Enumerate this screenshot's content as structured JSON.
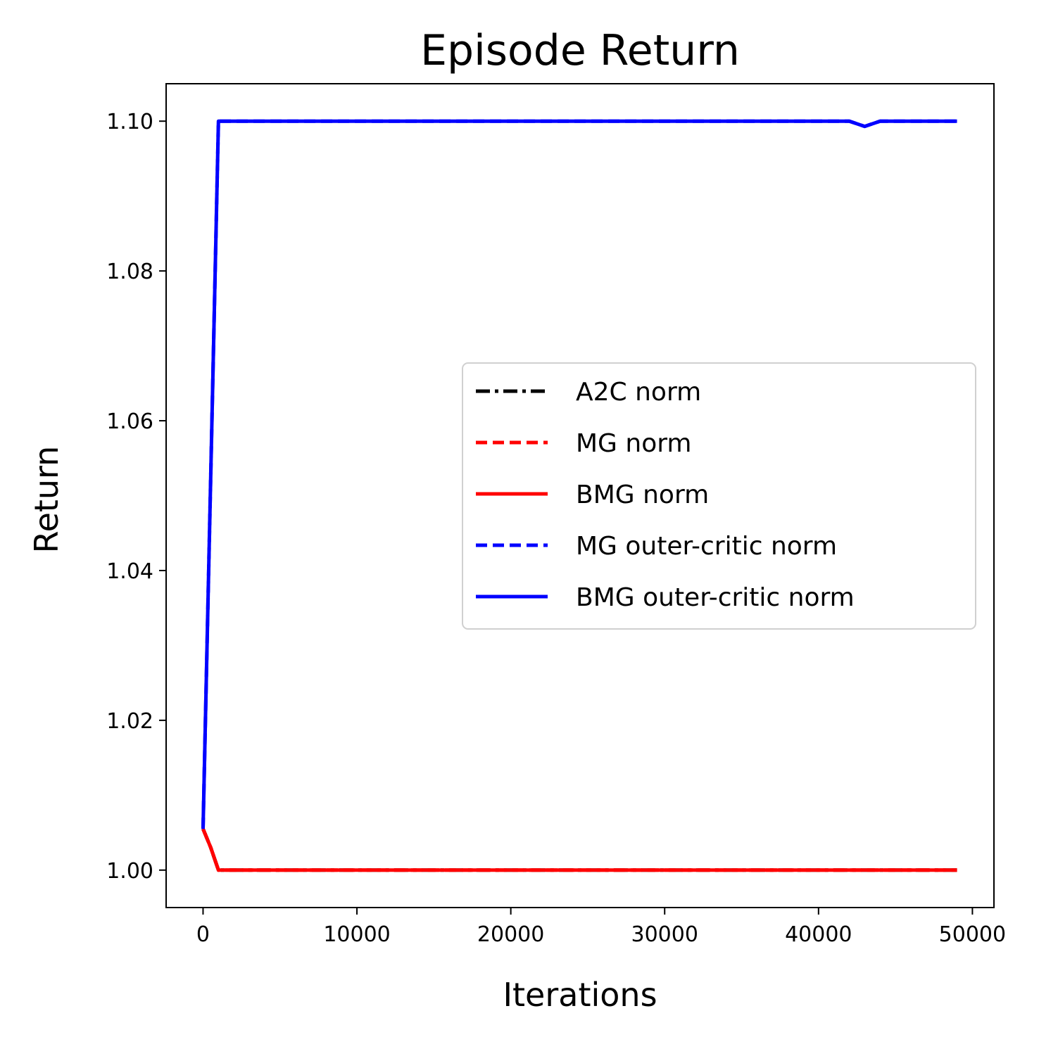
{
  "chart_data": {
    "type": "line",
    "title": "Episode Return",
    "xlabel": "Iterations",
    "ylabel": "Return",
    "xlim": [
      -2400,
      51400
    ],
    "ylim": [
      0.995,
      1.105
    ],
    "xticks": [
      0,
      10000,
      20000,
      30000,
      40000,
      50000
    ],
    "xtick_labels": [
      "0",
      "10000",
      "20000",
      "30000",
      "40000",
      "50000"
    ],
    "yticks": [
      1.0,
      1.02,
      1.04,
      1.06,
      1.08,
      1.1
    ],
    "ytick_labels": [
      "1.00",
      "1.02",
      "1.04",
      "1.06",
      "1.08",
      "1.10"
    ],
    "grid": false,
    "legend_position": "center-right",
    "series": [
      {
        "name": "A2C norm",
        "color": "#000000",
        "style": "dashdot",
        "x": [
          0,
          500,
          1000,
          49000
        ],
        "y": [
          1.0055,
          1.003,
          1.0,
          1.0
        ]
      },
      {
        "name": "MG norm",
        "color": "#ff0000",
        "style": "dashed",
        "x": [
          0,
          500,
          1000,
          49000
        ],
        "y": [
          1.0055,
          1.003,
          1.0,
          1.0
        ]
      },
      {
        "name": "BMG norm",
        "color": "#ff0000",
        "style": "solid",
        "x": [
          0,
          500,
          1000,
          49000
        ],
        "y": [
          1.0055,
          1.003,
          1.0,
          1.0
        ]
      },
      {
        "name": "MG outer-critic norm",
        "color": "#0000ff",
        "style": "dashed",
        "x": [
          0,
          1000,
          42000,
          43000,
          44000,
          49000
        ],
        "y": [
          1.0055,
          1.1,
          1.1,
          1.0993,
          1.1,
          1.1
        ]
      },
      {
        "name": "BMG outer-critic norm",
        "color": "#0000ff",
        "style": "solid",
        "x": [
          0,
          1000,
          42000,
          43000,
          44000,
          49000
        ],
        "y": [
          1.0055,
          1.1,
          1.1,
          1.0993,
          1.1,
          1.1
        ]
      }
    ]
  }
}
